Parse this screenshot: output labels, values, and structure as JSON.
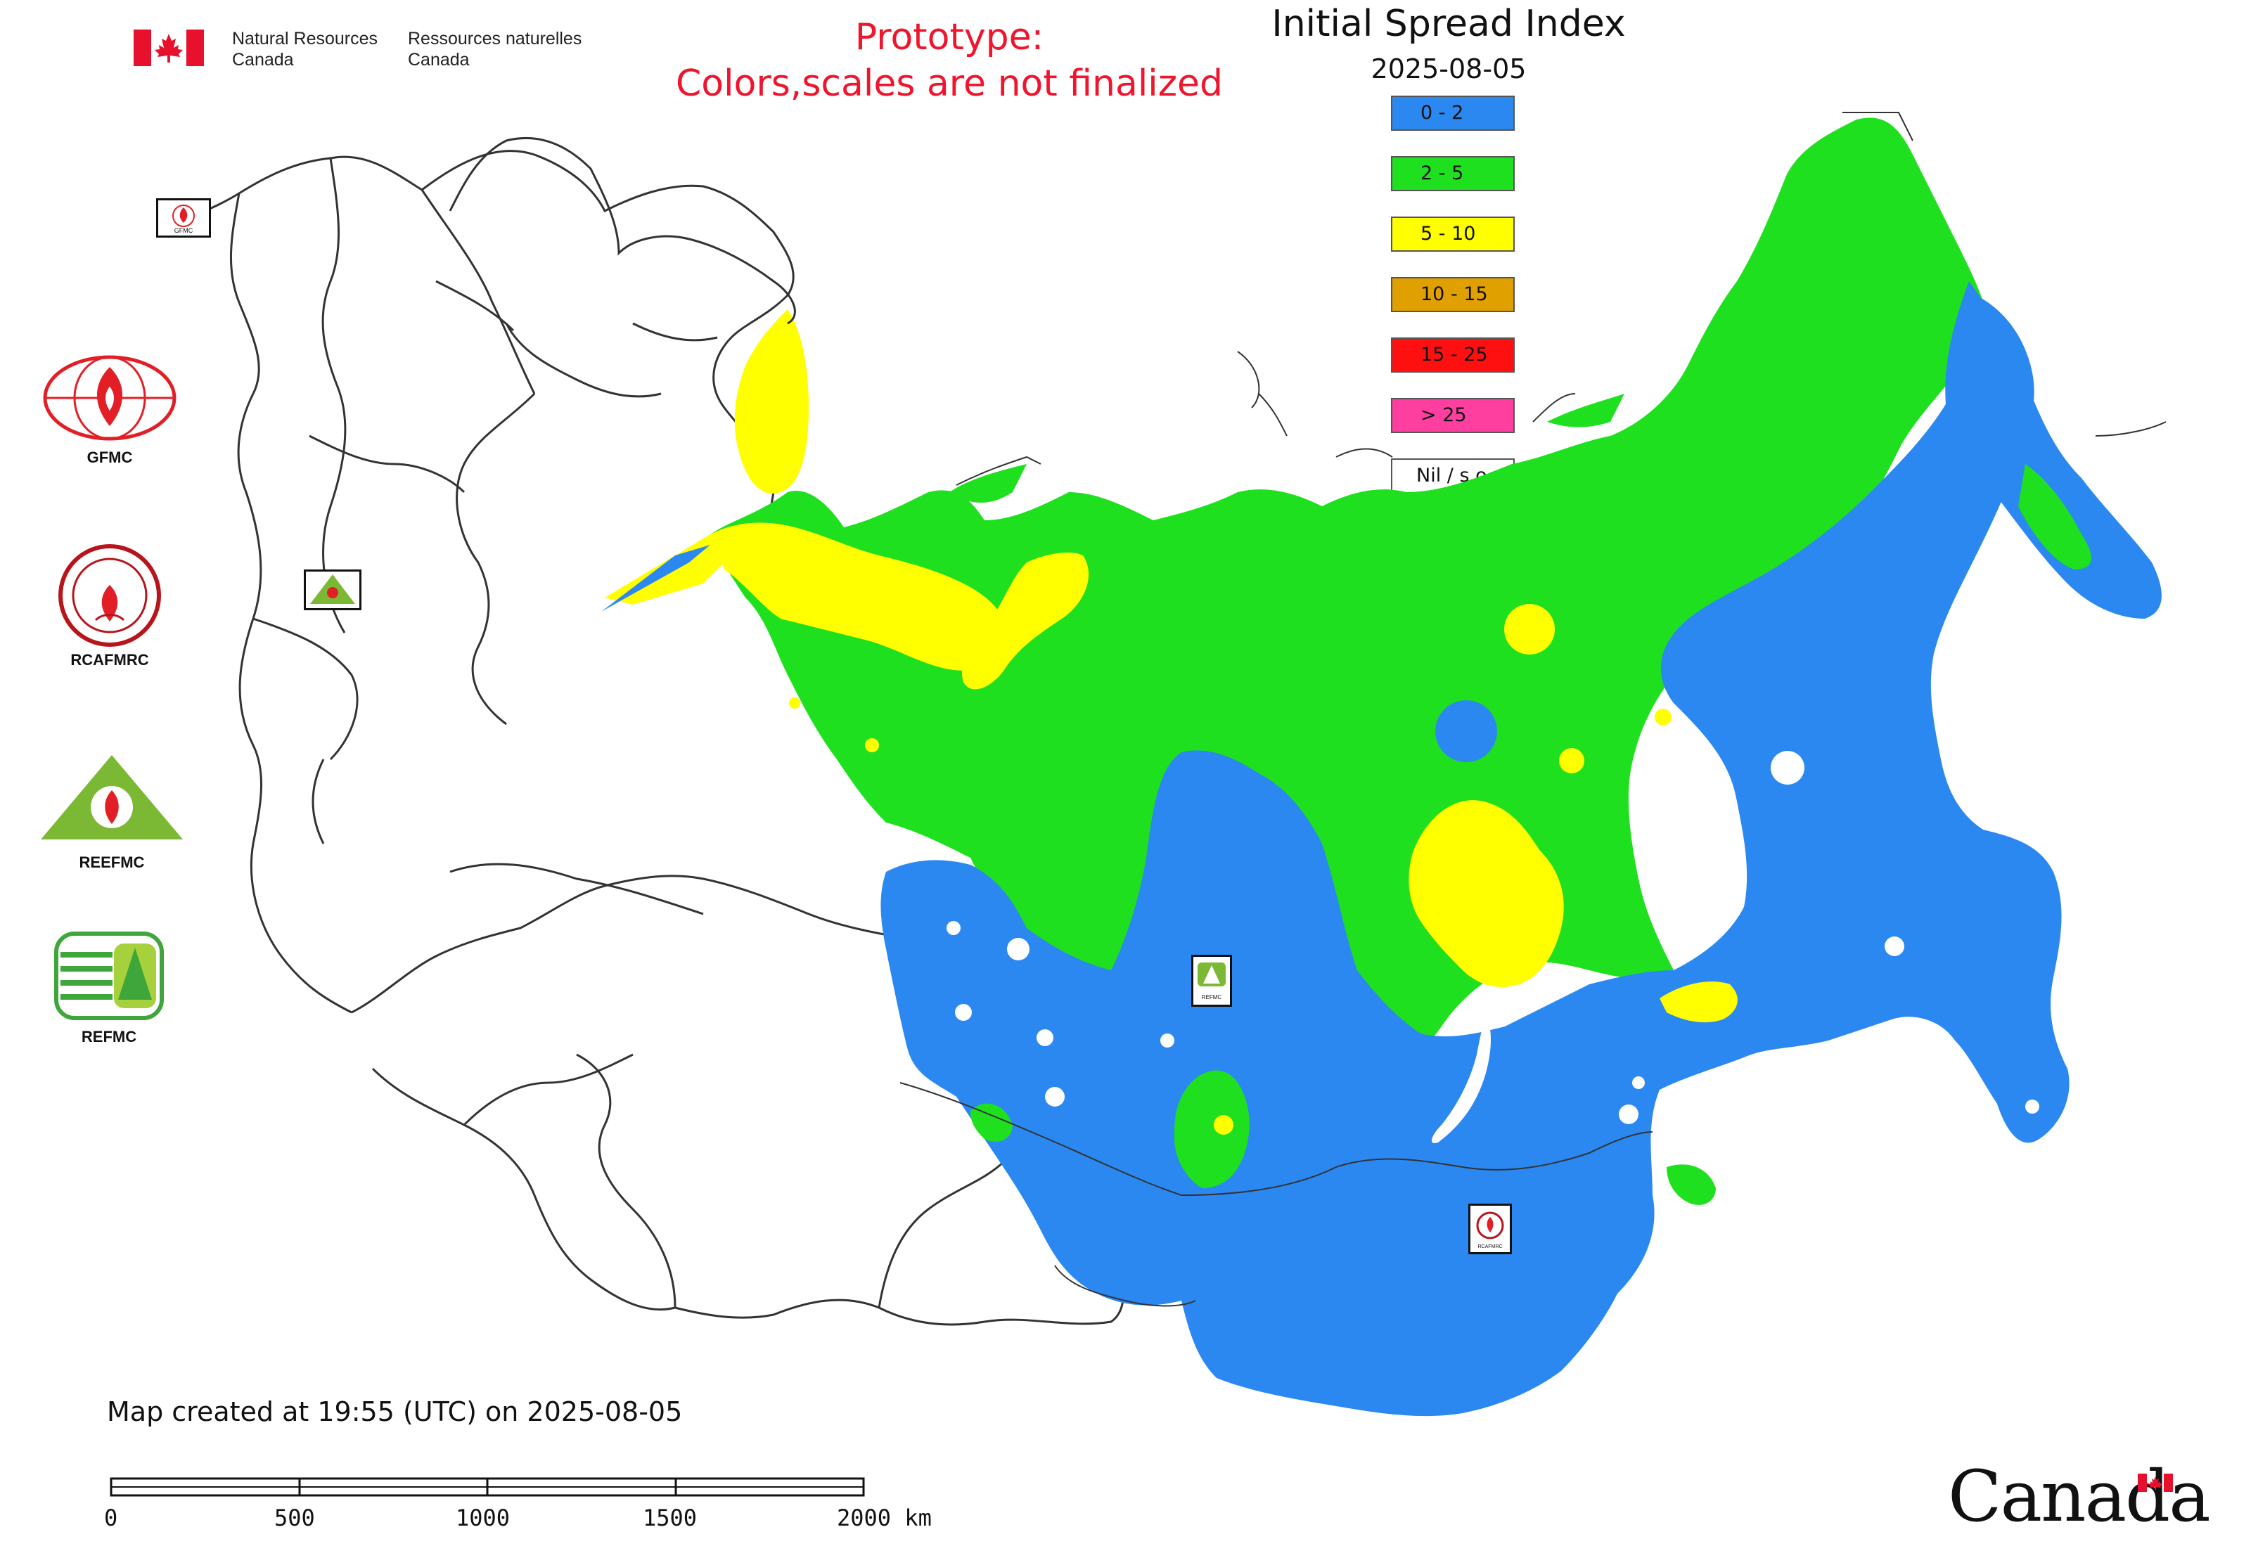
{
  "header": {
    "dept_en_line1": "Natural Resources",
    "dept_en_line2": "Canada",
    "dept_fr_line1": "Ressources naturelles",
    "dept_fr_line2": "Canada",
    "prototype_line1": "Prototype:",
    "prototype_line2": "Colors,scales are not finalized"
  },
  "map": {
    "title": "Initial Spread Index",
    "date": "2025-08-05",
    "legend": [
      {
        "label": "0 - 2",
        "color": "#2b88f0"
      },
      {
        "label": "2 - 5",
        "color": "#1fe01f"
      },
      {
        "label": "5 - 10",
        "color": "#ffff00"
      },
      {
        "label": "10 - 15",
        "color": "#e0a000"
      },
      {
        "label": "15 - 25",
        "color": "#ff1010"
      },
      {
        "label": "> 25",
        "color": "#ff3fa0"
      },
      {
        "label": "Nil / s.o.",
        "color": "#ffffff"
      }
    ]
  },
  "logos": {
    "gfmc": "GFMC",
    "rcafmrc": "RCAFMRC",
    "reefmc": "REEFMC",
    "refmc": "REFMC",
    "map_marker_gfmc": "GFMC",
    "map_marker_refmc": "REFMC",
    "map_marker_rcafmrc": "RCAFMRC"
  },
  "footer": {
    "created": "Map created at 19:55 (UTC) on 2025-08-05",
    "scale_labels": [
      "0",
      "500",
      "1000",
      "1500",
      "2000 km"
    ],
    "canada_wordmark": "Canada"
  }
}
